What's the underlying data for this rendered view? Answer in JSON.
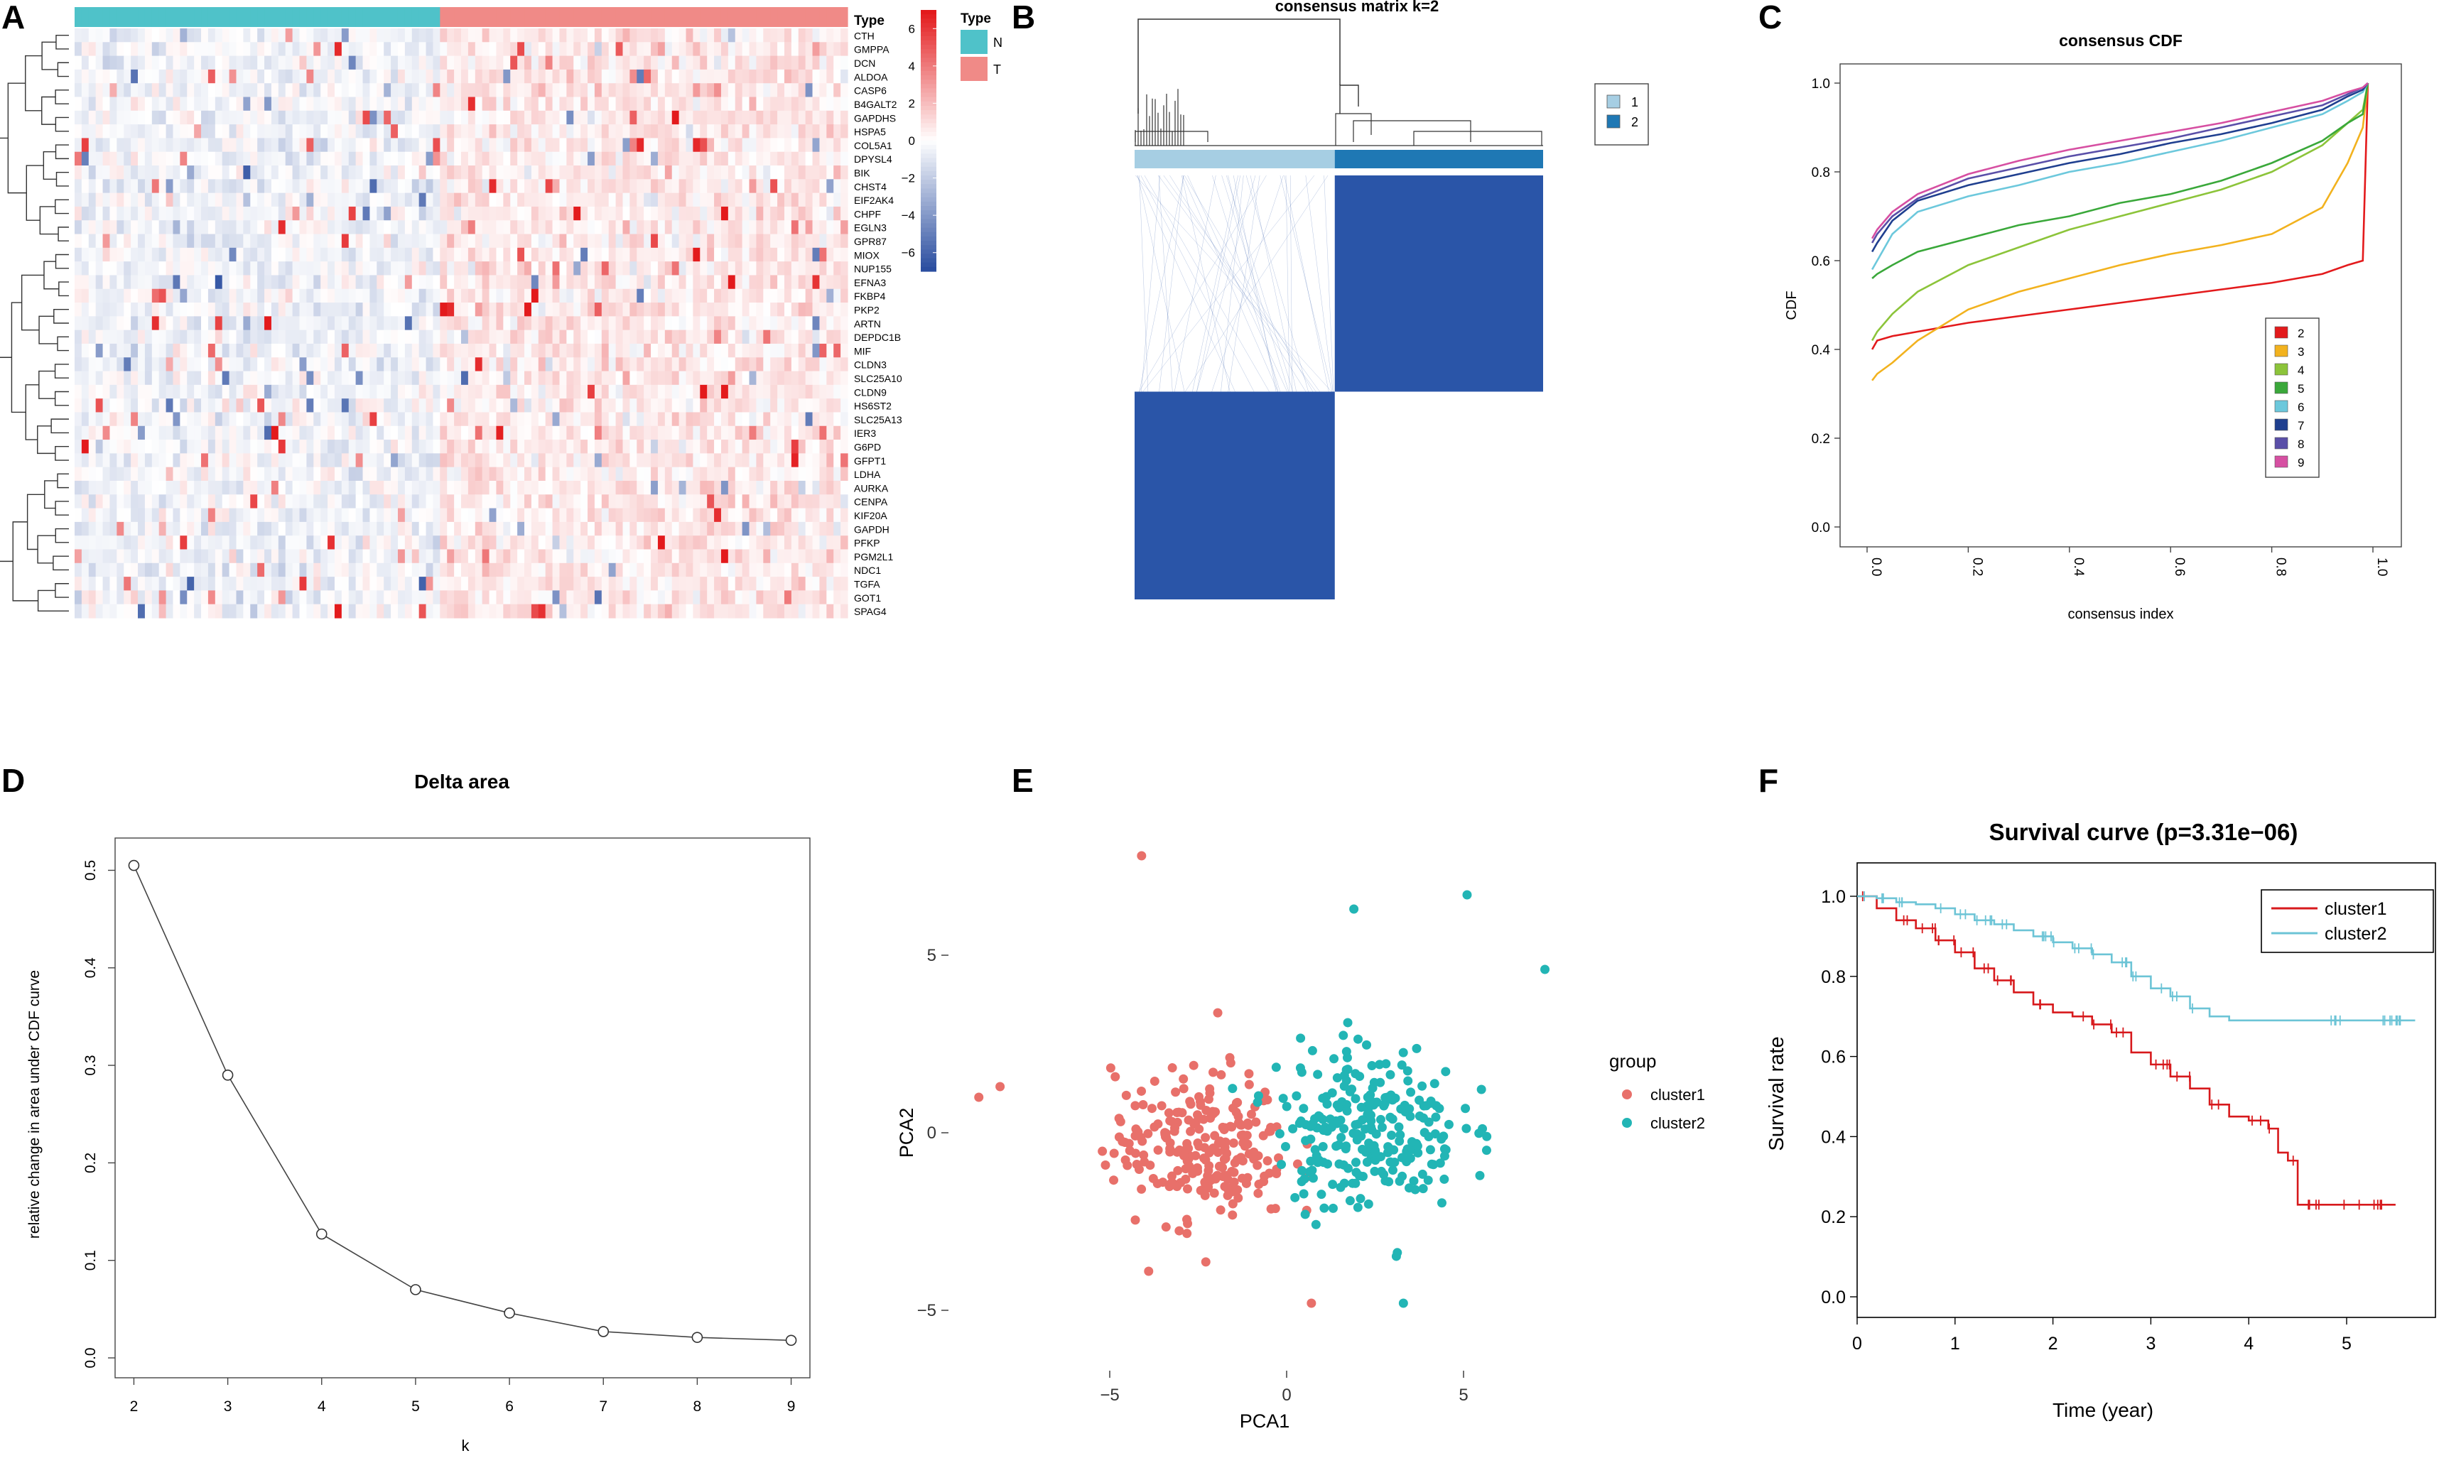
{
  "chart_data": [
    {
      "panel": "A",
      "type": "heatmap",
      "annotation_title": "Type",
      "legend_title": "Type",
      "groups": [
        {
          "name": "N",
          "color": "#4fc2c9"
        },
        {
          "name": "T",
          "color": "#f08a87"
        }
      ],
      "n_samples": 110,
      "n_normal": 52,
      "colorbar_ticks": [
        "6",
        "4",
        "2",
        "0",
        "−2",
        "−4",
        "−6"
      ],
      "colorbar_range": [
        -7,
        7
      ],
      "colors": {
        "high": "#e31a1c",
        "mid": "#ffffff",
        "low": "#2b4ea0"
      },
      "genes": [
        "CTH",
        "GMPPA",
        "DCN",
        "ALDOA",
        "CASP6",
        "B4GALT2",
        "GAPDHS",
        "HSPA5",
        "COL5A1",
        "DPYSL4",
        "BIK",
        "CHST4",
        "EIF2AK4",
        "CHPF",
        "EGLN3",
        "GPR87",
        "MIOX",
        "NUP155",
        "EFNA3",
        "FKBP4",
        "PKP2",
        "ARTN",
        "DEPDC1B",
        "MIF",
        "CLDN3",
        "SLC25A10",
        "CLDN9",
        "HS6ST2",
        "SLC25A13",
        "IER3",
        "G6PD",
        "GFPT1",
        "LDHA",
        "AURKA",
        "CENPA",
        "KIF20A",
        "GAPDH",
        "PFKP",
        "PGM2L1",
        "NDC1",
        "TGFA",
        "GOT1",
        "SPAG4"
      ]
    },
    {
      "panel": "B",
      "type": "heatmap",
      "title": "consensus matrix k=2",
      "clusters": [
        {
          "name": "1",
          "color": "#a6cee3",
          "fraction": 0.49
        },
        {
          "name": "2",
          "color": "#1f78b4",
          "fraction": 0.51
        }
      ],
      "fill_color": "#2a55a8"
    },
    {
      "panel": "C",
      "type": "line",
      "title": "consensus CDF",
      "xlabel": "consensus index",
      "ylabel": "CDF",
      "xlim": [
        0,
        1
      ],
      "ylim": [
        0,
        1
      ],
      "xticks": [
        "0.0",
        "0.2",
        "0.4",
        "0.6",
        "0.8",
        "1.0"
      ],
      "yticks": [
        "0.0",
        "0.2",
        "0.4",
        "0.6",
        "0.8",
        "1.0"
      ],
      "x": [
        0.01,
        0.02,
        0.05,
        0.1,
        0.2,
        0.3,
        0.4,
        0.5,
        0.6,
        0.7,
        0.8,
        0.9,
        0.95,
        0.98,
        0.99
      ],
      "series": [
        {
          "name": "2",
          "color": "#e31a1c",
          "values": [
            0.4,
            0.42,
            0.43,
            0.44,
            0.46,
            0.475,
            0.49,
            0.505,
            0.52,
            0.535,
            0.55,
            0.57,
            0.59,
            0.6,
            1.0
          ]
        },
        {
          "name": "3",
          "color": "#f2b21e",
          "values": [
            0.33,
            0.345,
            0.37,
            0.42,
            0.49,
            0.53,
            0.56,
            0.59,
            0.615,
            0.635,
            0.66,
            0.72,
            0.82,
            0.9,
            1.0
          ]
        },
        {
          "name": "4",
          "color": "#8cc43a",
          "values": [
            0.42,
            0.44,
            0.48,
            0.53,
            0.59,
            0.63,
            0.67,
            0.7,
            0.73,
            0.76,
            0.8,
            0.86,
            0.91,
            0.94,
            1.0
          ]
        },
        {
          "name": "5",
          "color": "#3aa83a",
          "values": [
            0.56,
            0.57,
            0.59,
            0.62,
            0.65,
            0.68,
            0.7,
            0.73,
            0.75,
            0.78,
            0.82,
            0.87,
            0.91,
            0.93,
            1.0
          ]
        },
        {
          "name": "6",
          "color": "#6cc8dc",
          "values": [
            0.58,
            0.6,
            0.66,
            0.71,
            0.745,
            0.77,
            0.8,
            0.82,
            0.845,
            0.87,
            0.9,
            0.93,
            0.96,
            0.98,
            1.0
          ]
        },
        {
          "name": "7",
          "color": "#1f3f8f",
          "values": [
            0.62,
            0.64,
            0.69,
            0.735,
            0.77,
            0.795,
            0.82,
            0.84,
            0.865,
            0.885,
            0.91,
            0.94,
            0.97,
            0.985,
            1.0
          ]
        },
        {
          "name": "8",
          "color": "#5a4fa8",
          "values": [
            0.64,
            0.66,
            0.7,
            0.74,
            0.785,
            0.81,
            0.835,
            0.855,
            0.875,
            0.9,
            0.925,
            0.95,
            0.975,
            0.99,
            1.0
          ]
        },
        {
          "name": "9",
          "color": "#d64fa2",
          "values": [
            0.65,
            0.67,
            0.71,
            0.75,
            0.795,
            0.825,
            0.85,
            0.87,
            0.89,
            0.91,
            0.935,
            0.96,
            0.98,
            0.99,
            1.0
          ]
        }
      ]
    },
    {
      "panel": "D",
      "type": "line",
      "title": "Delta area",
      "xlabel": "k",
      "ylabel": "relative change in area under CDF curve",
      "xlim": [
        1.8,
        9.2
      ],
      "ylim": [
        0,
        0.52
      ],
      "xticks": [
        "2",
        "3",
        "4",
        "5",
        "6",
        "7",
        "8",
        "9"
      ],
      "yticks": [
        "0.0",
        "0.1",
        "0.2",
        "0.3",
        "0.4",
        "0.5"
      ],
      "x": [
        2,
        3,
        4,
        5,
        6,
        7,
        8,
        9
      ],
      "values": [
        0.505,
        0.29,
        0.127,
        0.07,
        0.046,
        0.027,
        0.021,
        0.018
      ]
    },
    {
      "panel": "E",
      "type": "scatter",
      "xlabel": "PCA1",
      "ylabel": "PCA2",
      "xlim": [
        -9,
        7.5
      ],
      "ylim": [
        -5.3,
        8.2
      ],
      "xticks": [
        "−5",
        "0",
        "5"
      ],
      "yticks": [
        "−5",
        "0",
        "5"
      ],
      "legend_title": "group",
      "series": [
        {
          "name": "cluster1",
          "color": "#e8706a",
          "center": [
            -2.4,
            -0.4
          ],
          "spread": [
            2.0,
            1.7
          ],
          "n": 240
        },
        {
          "name": "cluster2",
          "color": "#22b5b5",
          "center": [
            2.3,
            0.2
          ],
          "spread": [
            2.1,
            1.9
          ],
          "n": 250
        }
      ],
      "outliers": [
        {
          "series": "cluster1",
          "x": -4.1,
          "y": 7.8
        },
        {
          "series": "cluster1",
          "x": -8.7,
          "y": 1.0
        },
        {
          "series": "cluster1",
          "x": -8.1,
          "y": 1.3
        },
        {
          "series": "cluster2",
          "x": 5.1,
          "y": 6.7
        },
        {
          "series": "cluster2",
          "x": 1.9,
          "y": 6.3
        },
        {
          "series": "cluster2",
          "x": 7.3,
          "y": 4.6
        },
        {
          "series": "cluster2",
          "x": 3.3,
          "y": -4.8
        },
        {
          "series": "cluster1",
          "x": -3.9,
          "y": -3.9
        },
        {
          "series": "cluster1",
          "x": 0.7,
          "y": -4.8
        }
      ]
    },
    {
      "panel": "F",
      "type": "line",
      "title": "Survival curve (p=3.31e−06)",
      "xlabel": "Time (year)",
      "ylabel": "Survival rate",
      "xlim": [
        0,
        5.8
      ],
      "ylim": [
        0,
        1.02
      ],
      "xticks": [
        "0",
        "1",
        "2",
        "3",
        "4",
        "5"
      ],
      "yticks": [
        "0.0",
        "0.2",
        "0.4",
        "0.6",
        "0.8",
        "1.0"
      ],
      "series": [
        {
          "name": "cluster1",
          "color": "#d7191c",
          "times": [
            0,
            0.2,
            0.4,
            0.6,
            0.8,
            1.0,
            1.2,
            1.4,
            1.6,
            1.8,
            2.0,
            2.2,
            2.4,
            2.6,
            2.8,
            3.0,
            3.2,
            3.4,
            3.6,
            3.8,
            4.0,
            4.2,
            4.3,
            4.4,
            4.5,
            5.5
          ],
          "values": [
            1.0,
            0.97,
            0.94,
            0.92,
            0.89,
            0.86,
            0.82,
            0.79,
            0.76,
            0.73,
            0.71,
            0.7,
            0.68,
            0.66,
            0.61,
            0.58,
            0.55,
            0.52,
            0.48,
            0.45,
            0.44,
            0.42,
            0.36,
            0.34,
            0.23,
            0.23
          ]
        },
        {
          "name": "cluster2",
          "color": "#6cc4d6",
          "times": [
            0,
            0.2,
            0.4,
            0.6,
            0.8,
            1.0,
            1.2,
            1.4,
            1.6,
            1.8,
            2.0,
            2.2,
            2.4,
            2.6,
            2.8,
            3.0,
            3.2,
            3.4,
            3.6,
            3.8,
            4.0,
            5.7
          ],
          "values": [
            1.0,
            0.995,
            0.985,
            0.98,
            0.97,
            0.955,
            0.94,
            0.93,
            0.915,
            0.9,
            0.885,
            0.87,
            0.855,
            0.835,
            0.8,
            0.77,
            0.75,
            0.72,
            0.7,
            0.69,
            0.69,
            0.69
          ]
        }
      ]
    }
  ],
  "panel_labels": [
    "A",
    "B",
    "C",
    "D",
    "E",
    "F"
  ]
}
